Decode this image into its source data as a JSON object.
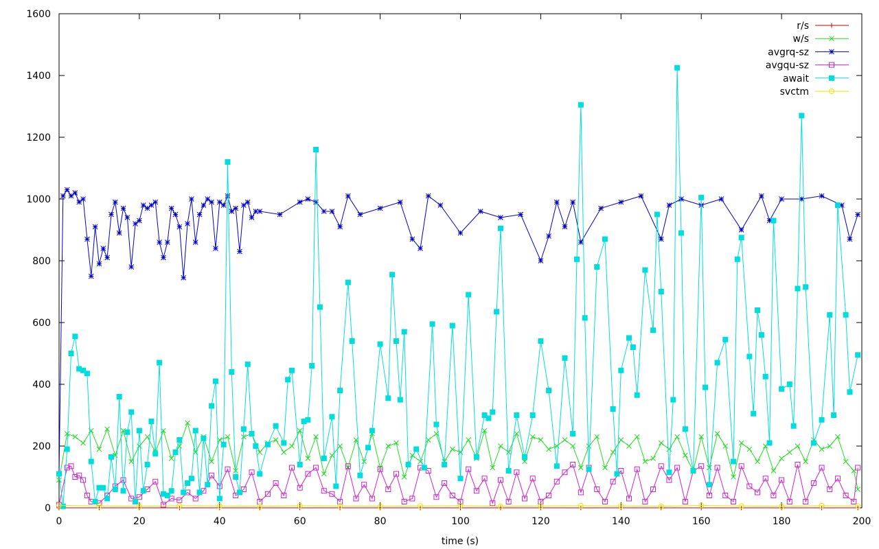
{
  "chart_data": {
    "type": "line",
    "xlabel": "time (s)",
    "ylabel": "",
    "title": "",
    "xlim": [
      0,
      200
    ],
    "ylim": [
      0,
      1600
    ],
    "xticks": [
      0,
      20,
      40,
      60,
      80,
      100,
      120,
      140,
      160,
      180,
      200
    ],
    "yticks": [
      0,
      200,
      400,
      600,
      800,
      1000,
      1200,
      1400,
      1600
    ],
    "grid": false,
    "legend_position": "top-right",
    "series": [
      {
        "name": "r/s",
        "color": "#cc0000",
        "marker": "plus",
        "x": [
          0,
          10,
          20,
          30,
          40,
          50,
          60,
          70,
          80,
          90,
          100,
          110,
          120,
          130,
          140,
          150,
          160,
          170,
          180,
          190,
          199
        ],
        "values": [
          0,
          0,
          0,
          0,
          0,
          0,
          0,
          0,
          0,
          0,
          0,
          0,
          0,
          0,
          0,
          0,
          0,
          0,
          0,
          0,
          0
        ]
      },
      {
        "name": "w/s",
        "color": "#22dd22",
        "marker": "cross",
        "x": [
          0,
          2,
          4,
          6,
          8,
          10,
          12,
          14,
          16,
          18,
          20,
          22,
          24,
          26,
          28,
          30,
          32,
          34,
          36,
          38,
          40,
          42,
          44,
          46,
          48,
          50,
          52,
          54,
          56,
          58,
          60,
          62,
          64,
          66,
          68,
          70,
          72,
          74,
          76,
          78,
          80,
          82,
          84,
          86,
          88,
          90,
          92,
          94,
          96,
          98,
          100,
          102,
          104,
          106,
          108,
          110,
          112,
          114,
          116,
          118,
          120,
          122,
          124,
          126,
          128,
          130,
          132,
          134,
          136,
          138,
          140,
          142,
          144,
          146,
          148,
          150,
          152,
          154,
          156,
          158,
          160,
          162,
          164,
          166,
          168,
          170,
          172,
          174,
          176,
          178,
          180,
          182,
          184,
          186,
          188,
          190,
          192,
          194,
          196,
          198,
          199
        ],
        "values": [
          90,
          240,
          230,
          210,
          250,
          190,
          255,
          170,
          250,
          150,
          200,
          230,
          180,
          250,
          160,
          200,
          275,
          180,
          230,
          150,
          220,
          230,
          120,
          230,
          240,
          180,
          210,
          220,
          180,
          200,
          250,
          160,
          230,
          110,
          170,
          200,
          130,
          220,
          150,
          240,
          130,
          200,
          210,
          100,
          170,
          150,
          220,
          240,
          150,
          190,
          180,
          220,
          160,
          250,
          130,
          200,
          180,
          240,
          150,
          230,
          220,
          190,
          200,
          220,
          200,
          130,
          200,
          230,
          130,
          180,
          220,
          200,
          230,
          150,
          160,
          210,
          190,
          230,
          170,
          120,
          230,
          130,
          240,
          200,
          100,
          210,
          190,
          150,
          200,
          120,
          160,
          180,
          200,
          150,
          220,
          190,
          200,
          230,
          150,
          120,
          60
        ]
      },
      {
        "name": "avgrq-sz",
        "color": "#0000cc",
        "marker": "star",
        "x": [
          0,
          1,
          2,
          3,
          4,
          5,
          6,
          7,
          8,
          9,
          10,
          11,
          12,
          13,
          14,
          15,
          16,
          17,
          18,
          19,
          20,
          21,
          22,
          23,
          24,
          25,
          26,
          27,
          28,
          29,
          30,
          31,
          32,
          33,
          34,
          35,
          36,
          37,
          38,
          39,
          40,
          41,
          42,
          43,
          44,
          45,
          46,
          47,
          48,
          49,
          50,
          55,
          60,
          62,
          64,
          66,
          68,
          70,
          72,
          75,
          80,
          85,
          88,
          90,
          92,
          95,
          100,
          105,
          110,
          115,
          120,
          122,
          124,
          126,
          128,
          130,
          135,
          140,
          145,
          150,
          152,
          155,
          160,
          165,
          170,
          175,
          177,
          180,
          185,
          190,
          195,
          197,
          199
        ],
        "values": [
          110,
          1010,
          1030,
          1010,
          1020,
          990,
          1000,
          870,
          750,
          910,
          790,
          840,
          810,
          950,
          990,
          890,
          970,
          940,
          780,
          920,
          930,
          980,
          970,
          980,
          990,
          860,
          810,
          860,
          970,
          950,
          910,
          745,
          920,
          1000,
          860,
          950,
          980,
          1000,
          990,
          840,
          990,
          980,
          1010,
          960,
          970,
          830,
          980,
          990,
          940,
          960,
          960,
          950,
          990,
          1000,
          990,
          960,
          960,
          910,
          1010,
          950,
          970,
          990,
          870,
          840,
          1010,
          980,
          890,
          960,
          940,
          950,
          800,
          880,
          990,
          910,
          990,
          860,
          970,
          990,
          1010,
          870,
          980,
          1000,
          980,
          1000,
          900,
          1010,
          930,
          1000,
          1000,
          1010,
          980,
          870,
          950
        ]
      },
      {
        "name": "avgqu-sz",
        "color": "#cc22cc",
        "marker": "square-open",
        "x": [
          0,
          2,
          3,
          4,
          5,
          6,
          7,
          8,
          10,
          12,
          14,
          16,
          18,
          20,
          22,
          24,
          26,
          28,
          30,
          32,
          34,
          36,
          38,
          40,
          42,
          44,
          46,
          48,
          50,
          52,
          54,
          56,
          58,
          60,
          62,
          64,
          66,
          68,
          70,
          72,
          74,
          76,
          78,
          80,
          82,
          84,
          86,
          88,
          90,
          92,
          94,
          96,
          98,
          100,
          102,
          104,
          106,
          108,
          110,
          112,
          114,
          116,
          118,
          120,
          122,
          124,
          126,
          128,
          130,
          132,
          134,
          136,
          138,
          140,
          142,
          144,
          146,
          148,
          150,
          152,
          154,
          156,
          158,
          160,
          162,
          164,
          166,
          168,
          170,
          172,
          174,
          176,
          178,
          180,
          182,
          184,
          186,
          188,
          190,
          192,
          194,
          196,
          198,
          199
        ],
        "values": [
          10,
          130,
          135,
          100,
          105,
          90,
          40,
          20,
          15,
          40,
          70,
          90,
          30,
          35,
          60,
          85,
          10,
          30,
          25,
          50,
          30,
          55,
          105,
          70,
          125,
          40,
          60,
          115,
          20,
          45,
          80,
          40,
          130,
          65,
          110,
          130,
          55,
          45,
          20,
          135,
          30,
          75,
          30,
          125,
          60,
          110,
          20,
          30,
          130,
          120,
          35,
          80,
          40,
          20,
          125,
          55,
          95,
          15,
          90,
          20,
          115,
          30,
          95,
          20,
          40,
          85,
          115,
          140,
          50,
          130,
          60,
          20,
          85,
          120,
          30,
          125,
          20,
          60,
          135,
          90,
          130,
          20,
          120,
          135,
          40,
          130,
          40,
          20,
          135,
          70,
          50,
          95,
          40,
          90,
          20,
          140,
          20,
          80,
          130,
          60,
          95,
          40,
          20,
          130
        ]
      },
      {
        "name": "await",
        "color": "#00dddd",
        "marker": "square-filled",
        "x": [
          0,
          1,
          2,
          3,
          4,
          5,
          6,
          7,
          8,
          9,
          10,
          11,
          12,
          13,
          14,
          15,
          16,
          17,
          18,
          19,
          20,
          21,
          22,
          23,
          24,
          25,
          26,
          27,
          28,
          29,
          30,
          31,
          32,
          33,
          34,
          35,
          36,
          37,
          38,
          39,
          40,
          41,
          42,
          43,
          44,
          45,
          46,
          47,
          48,
          49,
          50,
          52,
          54,
          56,
          57,
          58,
          60,
          61,
          62,
          63,
          64,
          65,
          66,
          68,
          69,
          70,
          72,
          73,
          75,
          77,
          78,
          80,
          82,
          83,
          84,
          85,
          86,
          87,
          89,
          91,
          93,
          94,
          96,
          98,
          100,
          102,
          104,
          106,
          107,
          108,
          109,
          110,
          112,
          114,
          116,
          118,
          120,
          122,
          124,
          126,
          128,
          129,
          130,
          131,
          132,
          134,
          136,
          138,
          139,
          140,
          142,
          143,
          144,
          146,
          148,
          149,
          150,
          152,
          153,
          154,
          155,
          156,
          158,
          160,
          161,
          162,
          164,
          166,
          168,
          169,
          170,
          172,
          173,
          174,
          175,
          176,
          177,
          178,
          180,
          182,
          183,
          184,
          185,
          186,
          188,
          190,
          192,
          193,
          194,
          196,
          197,
          199
        ],
        "values": [
          110,
          5,
          190,
          500,
          555,
          450,
          445,
          435,
          150,
          20,
          65,
          65,
          30,
          165,
          60,
          360,
          55,
          245,
          310,
          20,
          250,
          55,
          140,
          280,
          175,
          470,
          45,
          40,
          55,
          180,
          220,
          50,
          80,
          95,
          250,
          50,
          225,
          75,
          330,
          410,
          30,
          205,
          1120,
          440,
          100,
          50,
          255,
          465,
          240,
          200,
          110,
          205,
          265,
          210,
          415,
          445,
          140,
          280,
          285,
          460,
          1160,
          650,
          160,
          295,
          70,
          380,
          730,
          540,
          105,
          195,
          250,
          530,
          355,
          755,
          540,
          350,
          570,
          140,
          190,
          130,
          595,
          270,
          140,
          590,
          95,
          690,
          165,
          300,
          290,
          310,
          635,
          905,
          120,
          300,
          165,
          300,
          540,
          380,
          135,
          485,
          240,
          805,
          1305,
          615,
          125,
          780,
          870,
          320,
          110,
          445,
          550,
          520,
          365,
          770,
          575,
          950,
          700,
          115,
          350,
          1425,
          890,
          255,
          120,
          1005,
          390,
          75,
          470,
          545,
          150,
          805,
          875,
          490,
          305,
          640,
          560,
          425,
          210,
          930,
          385,
          400,
          265,
          710,
          1270,
          715,
          210,
          285,
          625,
          300,
          980,
          625,
          375,
          495
        ]
      },
      {
        "name": "svctm",
        "color": "#e6e600",
        "marker": "circle",
        "x": [
          0,
          10,
          20,
          30,
          40,
          50,
          60,
          70,
          80,
          90,
          100,
          110,
          120,
          130,
          140,
          150,
          160,
          170,
          180,
          190,
          199
        ],
        "values": [
          8,
          6,
          5,
          7,
          6,
          5,
          7,
          6,
          5,
          6,
          7,
          5,
          6,
          7,
          6,
          5,
          8,
          6,
          5,
          7,
          6
        ]
      }
    ]
  }
}
